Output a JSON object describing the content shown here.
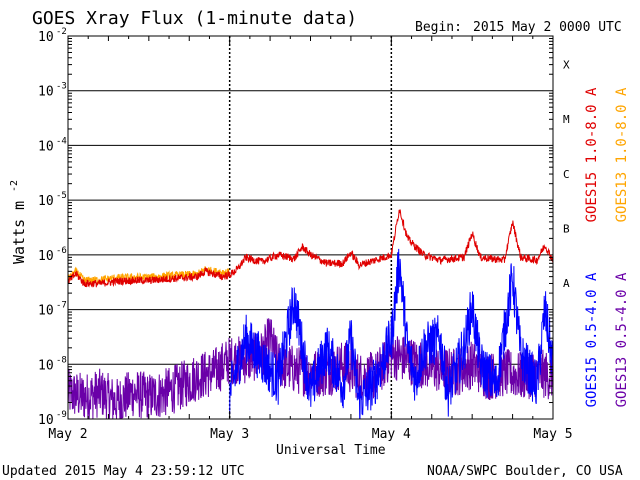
{
  "chart_data": {
    "type": "line",
    "title": "GOES Xray Flux (1-minute data)",
    "begin_label": "Begin:",
    "begin_value": "2015 May 2 0000 UTC",
    "xlabel": "Universal Time",
    "ylabel_main": "Watts m",
    "ylabel_sup": "-2",
    "x_ticks": [
      "May 2",
      "May 3",
      "May 4",
      "May 5"
    ],
    "x_range_days": [
      0,
      3
    ],
    "y_scale": "log",
    "ylim": [
      1e-09,
      0.01
    ],
    "y_ticks": [
      {
        "base": "10",
        "exp": "-9",
        "value": 1e-09
      },
      {
        "base": "10",
        "exp": "-8",
        "value": 1e-08
      },
      {
        "base": "10",
        "exp": "-7",
        "value": 1e-07
      },
      {
        "base": "10",
        "exp": "-6",
        "value": 1e-06
      },
      {
        "base": "10",
        "exp": "-5",
        "value": 1e-05
      },
      {
        "base": "10",
        "exp": "-4",
        "value": 0.0001
      },
      {
        "base": "10",
        "exp": "-3",
        "value": 0.001
      },
      {
        "base": "10",
        "exp": "-2",
        "value": 0.01
      }
    ],
    "flare_classes": [
      {
        "label": "A",
        "value": 1e-07
      },
      {
        "label": "B",
        "value": 1e-06
      },
      {
        "label": "C",
        "value": 1e-05
      },
      {
        "label": "M",
        "value": 0.0001
      },
      {
        "label": "X",
        "value": 0.001
      }
    ],
    "series": [
      {
        "name": "GOES15 1.0-8.0 A",
        "color": "#e00000",
        "band": "long",
        "points": [
          [
            0,
            3.2e-07
          ],
          [
            0.05,
            4.5e-07
          ],
          [
            0.1,
            3e-07
          ],
          [
            0.2,
            3e-07
          ],
          [
            0.3,
            3.3e-07
          ],
          [
            0.4,
            3.4e-07
          ],
          [
            0.5,
            3.4e-07
          ],
          [
            0.6,
            3.6e-07
          ],
          [
            0.7,
            3.8e-07
          ],
          [
            0.8,
            4e-07
          ],
          [
            0.85,
            5e-07
          ],
          [
            0.9,
            4.5e-07
          ],
          [
            0.95,
            4e-07
          ],
          [
            1.0,
            4.3e-07
          ],
          [
            1.05,
            5.5e-07
          ],
          [
            1.1,
            9e-07
          ],
          [
            1.15,
            8e-07
          ],
          [
            1.2,
            7.5e-07
          ],
          [
            1.3,
            1e-06
          ],
          [
            1.4,
            8.5e-07
          ],
          [
            1.45,
            1.4e-06
          ],
          [
            1.5,
            1e-06
          ],
          [
            1.6,
            7e-07
          ],
          [
            1.7,
            7e-07
          ],
          [
            1.75,
            1.1e-06
          ],
          [
            1.8,
            6.5e-07
          ],
          [
            1.9,
            8e-07
          ],
          [
            2.0,
            1e-06
          ],
          [
            2.05,
            7e-06
          ],
          [
            2.1,
            2e-06
          ],
          [
            2.15,
            1.4e-06
          ],
          [
            2.2,
            1e-06
          ],
          [
            2.3,
            8e-07
          ],
          [
            2.45,
            9e-07
          ],
          [
            2.5,
            2.5e-06
          ],
          [
            2.55,
            9e-07
          ],
          [
            2.7,
            8e-07
          ],
          [
            2.75,
            4e-06
          ],
          [
            2.8,
            9e-07
          ],
          [
            2.9,
            8e-07
          ],
          [
            2.95,
            1.5e-06
          ],
          [
            3.0,
            8e-07
          ]
        ]
      },
      {
        "name": "GOES13 1.0-8.0 A",
        "color": "#ffa500",
        "band": "long",
        "points": [
          [
            0,
            3.6e-07
          ],
          [
            0.05,
            5e-07
          ],
          [
            0.1,
            3.4e-07
          ],
          [
            0.2,
            3.5e-07
          ],
          [
            0.3,
            3.8e-07
          ],
          [
            0.4,
            3.9e-07
          ],
          [
            0.5,
            3.9e-07
          ],
          [
            0.6,
            4.1e-07
          ],
          [
            0.7,
            4.3e-07
          ],
          [
            0.8,
            4.4e-07
          ],
          [
            0.85,
            5.5e-07
          ],
          [
            0.9,
            5e-07
          ],
          [
            1.0,
            4.8e-07
          ]
        ]
      },
      {
        "name": "GOES15 0.5-4.0 A",
        "color": "#0000ff",
        "band": "short",
        "points": [
          [
            1.0,
            3e-09
          ],
          [
            1.1,
            3e-08
          ],
          [
            1.2,
            1.2e-08
          ],
          [
            1.3,
            5e-09
          ],
          [
            1.35,
            3e-08
          ],
          [
            1.4,
            1.5e-07
          ],
          [
            1.45,
            2e-08
          ],
          [
            1.5,
            3e-09
          ],
          [
            1.6,
            2e-08
          ],
          [
            1.7,
            4e-09
          ],
          [
            1.75,
            3e-08
          ],
          [
            1.8,
            2e-09
          ],
          [
            1.9,
            5e-09
          ],
          [
            2.0,
            3e-08
          ],
          [
            2.05,
            8e-07
          ],
          [
            2.1,
            2e-08
          ],
          [
            2.15,
            5e-09
          ],
          [
            2.2,
            2e-08
          ],
          [
            2.3,
            3e-08
          ],
          [
            2.35,
            3e-09
          ],
          [
            2.45,
            2e-08
          ],
          [
            2.5,
            1.2e-07
          ],
          [
            2.55,
            1e-08
          ],
          [
            2.65,
            4e-09
          ],
          [
            2.75,
            4e-07
          ],
          [
            2.8,
            1.5e-08
          ],
          [
            2.9,
            4e-09
          ],
          [
            2.95,
            1e-07
          ],
          [
            3.0,
            1e-08
          ]
        ]
      },
      {
        "name": "GOES13 0.5-4.0 A",
        "color": "#6a00a8",
        "band": "short",
        "points": [
          [
            0,
            3e-09
          ],
          [
            0.1,
            2.5e-09
          ],
          [
            0.2,
            3e-09
          ],
          [
            0.3,
            2e-09
          ],
          [
            0.4,
            3e-09
          ],
          [
            0.5,
            2.5e-09
          ],
          [
            0.6,
            3e-09
          ],
          [
            0.7,
            4e-09
          ],
          [
            0.8,
            6e-09
          ],
          [
            0.9,
            7e-09
          ],
          [
            1.0,
            1.2e-08
          ],
          [
            1.1,
            1.2e-08
          ],
          [
            1.2,
            1.5e-08
          ],
          [
            1.25,
            3e-08
          ],
          [
            1.3,
            1e-08
          ],
          [
            1.4,
            8e-09
          ],
          [
            1.5,
            7e-09
          ],
          [
            1.6,
            7e-09
          ],
          [
            1.7,
            1e-08
          ],
          [
            1.8,
            6e-09
          ],
          [
            1.9,
            6e-09
          ],
          [
            2.0,
            1.5e-08
          ],
          [
            2.1,
            1.2e-08
          ],
          [
            2.2,
            1e-08
          ],
          [
            2.3,
            8e-09
          ],
          [
            2.4,
            7e-09
          ],
          [
            2.5,
            1e-08
          ],
          [
            2.6,
            6e-09
          ],
          [
            2.7,
            7e-09
          ],
          [
            2.8,
            6e-09
          ],
          [
            2.9,
            7e-09
          ],
          [
            3.0,
            6e-09
          ]
        ]
      }
    ]
  },
  "footer": {
    "updated": "Updated 2015 May  4 23:59:12 UTC",
    "credit": "NOAA/SWPC Boulder, CO USA"
  }
}
